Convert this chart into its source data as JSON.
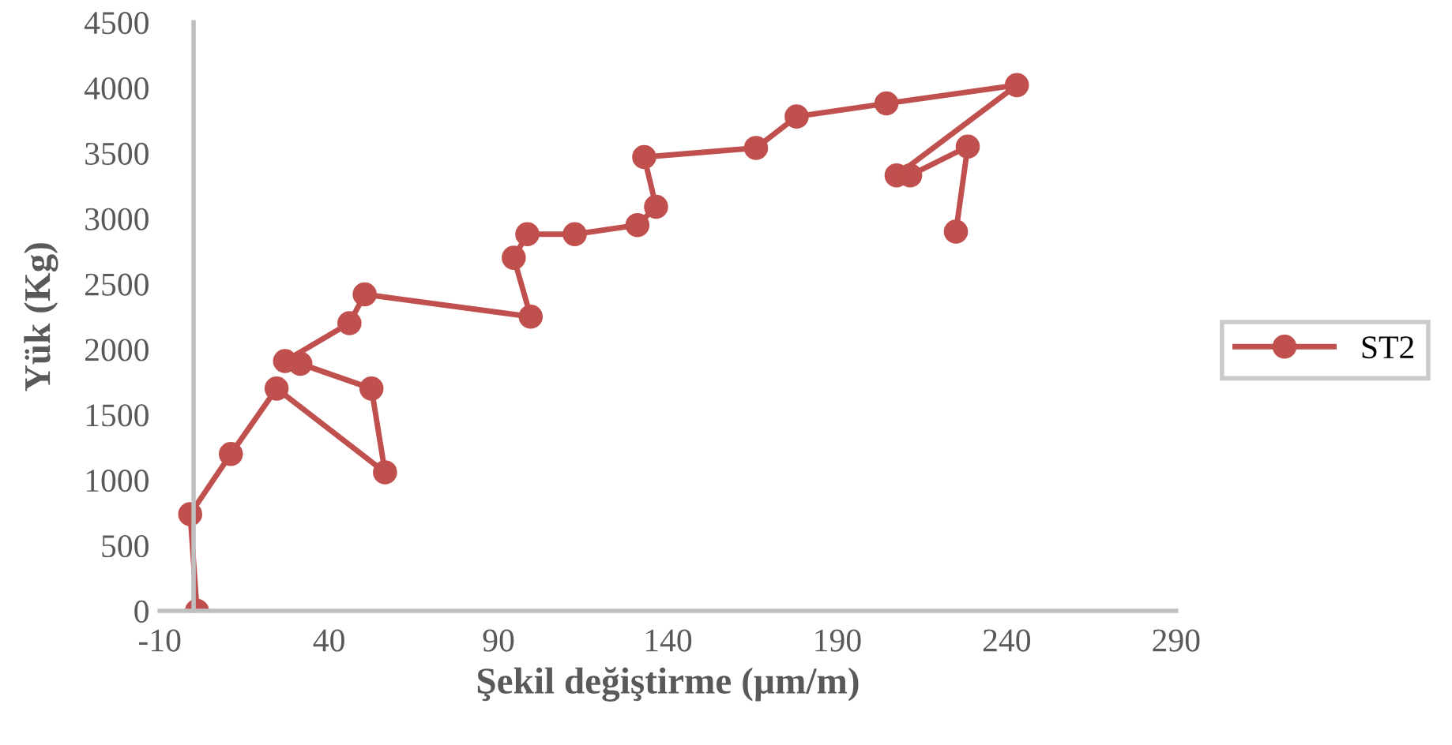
{
  "chart_data": {
    "type": "line",
    "xlabel": "Şekil değiştirme (µm/m)",
    "ylabel": "Yük (Kg)",
    "xlim": [
      -10,
      290
    ],
    "xticks": [
      -10,
      40,
      90,
      140,
      190,
      240,
      290
    ],
    "ylim": [
      0,
      4500
    ],
    "yticks": [
      0,
      500,
      1000,
      1500,
      2000,
      2500,
      3000,
      3500,
      4000,
      4500
    ],
    "grid": false,
    "legend": "right",
    "marker": "circle",
    "line_style": "solid",
    "series": [
      {
        "name": "ST2",
        "color": "#c0504d",
        "x": [
          1,
          -1,
          11,
          24.5,
          56.5,
          52.5,
          31.5,
          27,
          46,
          50.5,
          99.5,
          94.5,
          98.5,
          112.5,
          131,
          136.5,
          133,
          166,
          178,
          204.5,
          243,
          207.5,
          211.5,
          228.5,
          225
        ],
        "values": [
          0,
          740,
          1200,
          1700,
          1060,
          1700,
          1890,
          1910,
          2200,
          2420,
          2250,
          2700,
          2880,
          2880,
          2950,
          3090,
          3470,
          3540,
          3780,
          3880,
          4020,
          3330,
          3330,
          3550,
          2900
        ]
      }
    ]
  }
}
